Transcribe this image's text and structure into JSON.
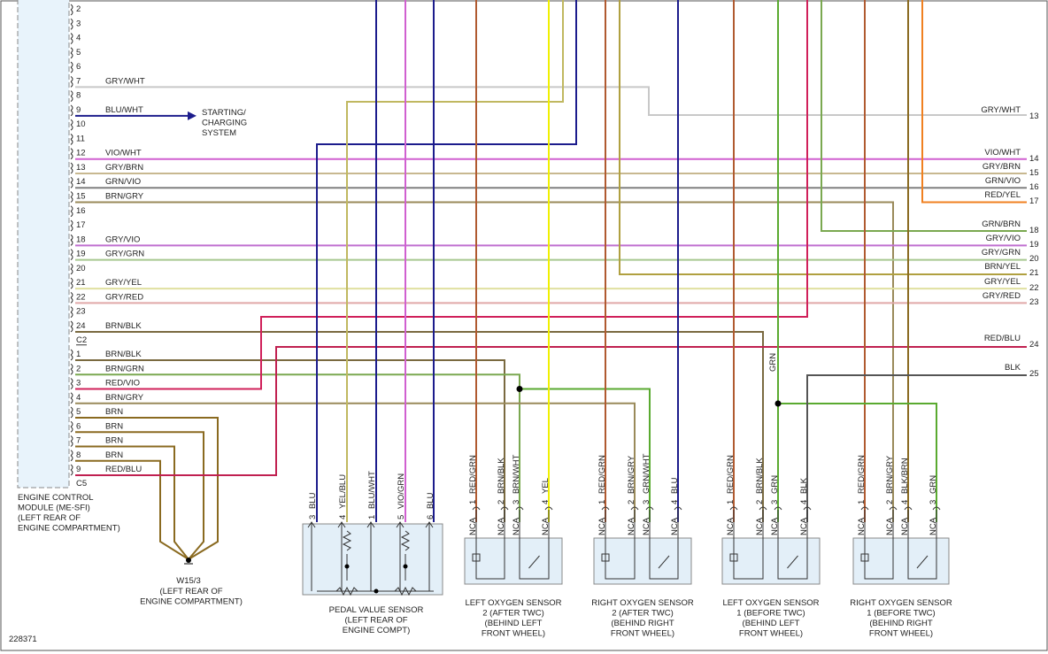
{
  "figure_id": "228371",
  "ecm": {
    "label": [
      "ENGINE CONTROL",
      "MODULE (ME-SFI)",
      "(LEFT REAR OF",
      "ENGINE COMPARTMENT)"
    ],
    "pins_top": [
      {
        "pin": "2"
      },
      {
        "pin": "3"
      },
      {
        "pin": "4"
      },
      {
        "pin": "5"
      },
      {
        "pin": "6"
      },
      {
        "pin": "7",
        "wire": "GRY/WHT"
      },
      {
        "pin": "8"
      },
      {
        "pin": "9",
        "wire": "BLU/WHT"
      },
      {
        "pin": "10"
      },
      {
        "pin": "11"
      },
      {
        "pin": "12",
        "wire": "VIO/WHT"
      },
      {
        "pin": "13",
        "wire": "GRY/BRN"
      },
      {
        "pin": "14",
        "wire": "GRN/VIO"
      },
      {
        "pin": "15",
        "wire": "BRN/GRY"
      },
      {
        "pin": "16"
      },
      {
        "pin": "17"
      },
      {
        "pin": "18",
        "wire": "GRY/VIO"
      },
      {
        "pin": "19",
        "wire": "GRY/GRN"
      },
      {
        "pin": "20"
      },
      {
        "pin": "21",
        "wire": "GRY/YEL"
      },
      {
        "pin": "22",
        "wire": "GRY/RED"
      },
      {
        "pin": "23"
      },
      {
        "pin": "24",
        "wire": "BRN/BLK"
      }
    ],
    "connector_c2": "C2",
    "pins_c2": [
      {
        "pin": "1",
        "wire": "BRN/BLK"
      },
      {
        "pin": "2",
        "wire": "BRN/GRN"
      },
      {
        "pin": "3",
        "wire": "RED/VIO"
      },
      {
        "pin": "4",
        "wire": "BRN/GRY"
      },
      {
        "pin": "5",
        "wire": "BRN"
      },
      {
        "pin": "6",
        "wire": "BRN"
      },
      {
        "pin": "7",
        "wire": "BRN"
      },
      {
        "pin": "8",
        "wire": "BRN"
      },
      {
        "pin": "9",
        "wire": "RED/BLU"
      }
    ],
    "connector_c5": "C5"
  },
  "starting_charging": [
    "STARTING/",
    "CHARGING",
    "SYSTEM"
  ],
  "right_terminals": [
    {
      "wire": "GRY/WHT",
      "pin": "13"
    },
    {
      "wire": "VIO/WHT",
      "pin": "14"
    },
    {
      "wire": "GRY/BRN",
      "pin": "15"
    },
    {
      "wire": "GRN/VIO",
      "pin": "16"
    },
    {
      "wire": "RED/YEL",
      "pin": "17"
    },
    {
      "wire": "GRN/BRN",
      "pin": "18"
    },
    {
      "wire": "GRY/VIO",
      "pin": "19"
    },
    {
      "wire": "GRY/GRN",
      "pin": "20"
    },
    {
      "wire": "BRN/YEL",
      "pin": "21"
    },
    {
      "wire": "GRY/YEL",
      "pin": "22"
    },
    {
      "wire": "GRY/RED",
      "pin": "23"
    },
    {
      "wire": "RED/BLU",
      "pin": "24"
    },
    {
      "wire": "BLK",
      "pin": "25"
    }
  ],
  "grn_label": "GRN",
  "ground": {
    "id": "W15/3",
    "label": [
      "(LEFT REAR OF",
      "ENGINE COMPARTMENT)"
    ]
  },
  "pedal_sensor": {
    "pins": [
      {
        "pin": "3",
        "wire": "BLU"
      },
      {
        "pin": "4",
        "wire": "YEL/BLU"
      },
      {
        "pin": "1",
        "wire": "BLU/WHT"
      },
      {
        "pin": "5",
        "wire": "VIO/GRN"
      },
      {
        "pin": "6",
        "wire": "BLU"
      }
    ],
    "label": [
      "PEDAL VALUE SENSOR",
      "(LEFT REAR OF",
      "ENGINE COMPT)"
    ]
  },
  "oxygen_sensors": [
    {
      "pins": [
        {
          "pin": "1",
          "wire": "RED/GRN",
          "nca": "NCA"
        },
        {
          "pin": "2",
          "wire": "BRN/BLK",
          "nca": "NCA"
        },
        {
          "pin": "3",
          "wire": "BRN/WHT",
          "nca": "NCA"
        },
        {
          "pin": "4",
          "wire": "YEL",
          "nca": "NCA"
        }
      ],
      "label": [
        "LEFT OXYGEN SENSOR",
        "2 (AFTER TWC)",
        "(BEHIND LEFT",
        "FRONT WHEEL)"
      ]
    },
    {
      "pins": [
        {
          "pin": "1",
          "wire": "RED/GRN",
          "nca": "NCA"
        },
        {
          "pin": "2",
          "wire": "BRN/GRY",
          "nca": "NCA"
        },
        {
          "pin": "3",
          "wire": "GRN/WHT",
          "nca": "NCA"
        },
        {
          "pin": "4",
          "wire": "BLU",
          "nca": "NCA"
        }
      ],
      "label": [
        "RIGHT OXYGEN SENSOR",
        "2 (AFTER TWC)",
        "(BEHIND RIGHT",
        "FRONT WHEEL)"
      ]
    },
    {
      "pins": [
        {
          "pin": "1",
          "wire": "RED/GRN",
          "nca": "NCA"
        },
        {
          "pin": "2",
          "wire": "BRN/BLK",
          "nca": "NCA"
        },
        {
          "pin": "3",
          "wire": "GRN",
          "nca": "NCA"
        },
        {
          "pin": "4",
          "wire": "BLK",
          "nca": "NCA"
        }
      ],
      "label": [
        "LEFT OXYGEN SENSOR",
        "1 (BEFORE TWC)",
        "(BEHIND LEFT",
        "FRONT WHEEL)"
      ]
    },
    {
      "pins": [
        {
          "pin": "1",
          "wire": "RED/GRN",
          "nca": "NCA"
        },
        {
          "pin": "2",
          "wire": "BRN/GRY",
          "nca": "NCA"
        },
        {
          "pin": "4",
          "wire": "BLK/BRN",
          "nca": "NCA"
        },
        {
          "pin": "3",
          "wire": "GRN",
          "nca": "NCA"
        }
      ],
      "label": [
        "RIGHT OXYGEN SENSOR",
        "1 (BEFORE TWC)",
        "(BEHIND RIGHT",
        "FRONT WHEEL)"
      ]
    }
  ]
}
